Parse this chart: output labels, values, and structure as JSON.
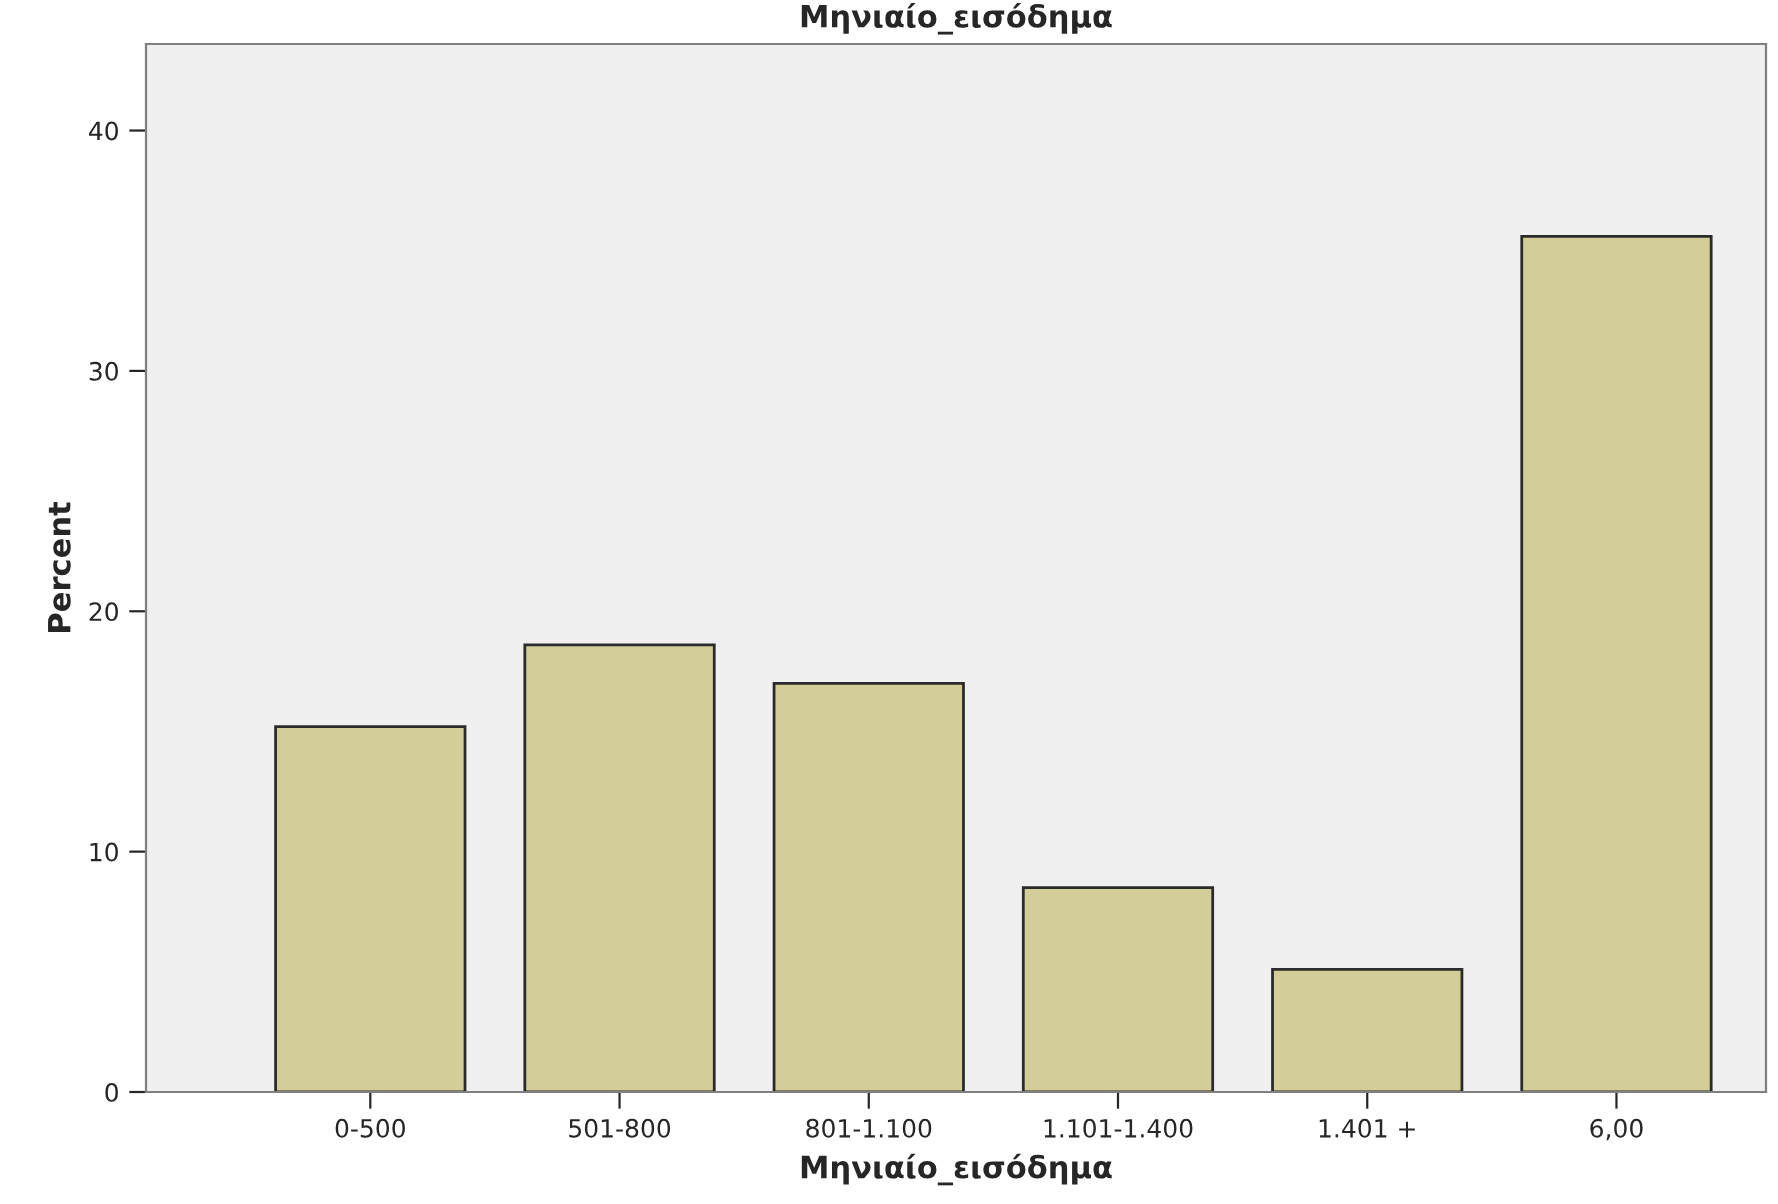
{
  "chart_data": {
    "type": "bar",
    "title": "Μηνιαίο_εισόδημα",
    "xlabel": "Μηνιαίο_εισόδημα",
    "ylabel": "Percent",
    "categories": [
      "0-500",
      "501-800",
      "801-1.100",
      "1.101-1.400",
      "1.401 +",
      "6,00"
    ],
    "values": [
      15.2,
      18.6,
      17.0,
      8.5,
      5.1,
      35.6
    ],
    "color": "#d3ce97",
    "ylim": [
      0,
      43.6
    ],
    "yticks": [
      0,
      10,
      20,
      30,
      40
    ],
    "grid": false,
    "legend": false
  }
}
